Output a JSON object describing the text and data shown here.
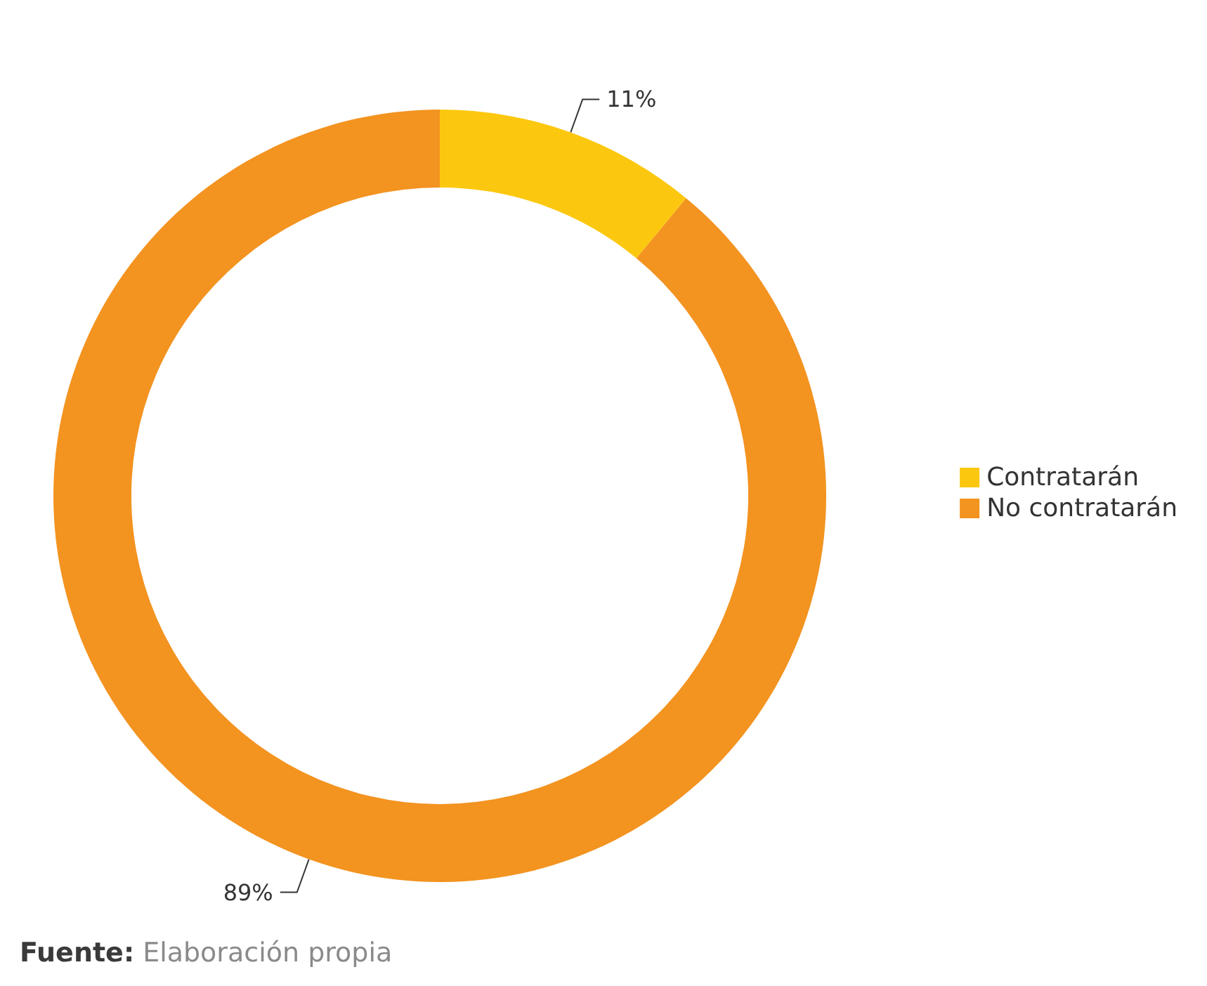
{
  "chart_data": {
    "type": "donut",
    "categories": [
      "Contratarán",
      "No contratarán"
    ],
    "values": [
      11,
      89
    ],
    "colors": [
      "#fcc80f",
      "#f39320"
    ],
    "value_labels": [
      "11%",
      "89%"
    ],
    "legend": "right",
    "annotations": [
      "Fuente: Elaboración propia"
    ]
  }
}
